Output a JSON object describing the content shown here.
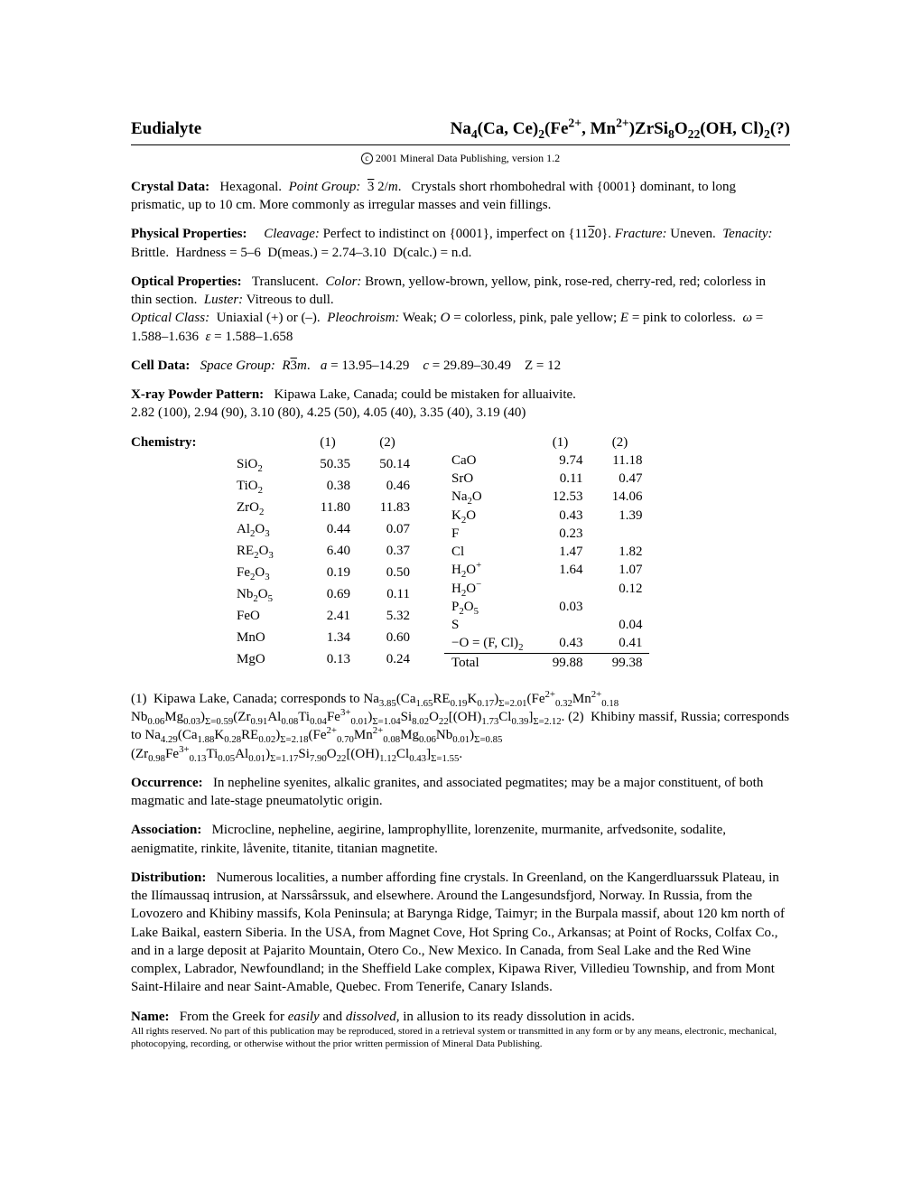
{
  "title": {
    "mineral": "Eudialyte",
    "formula_html": "Na<sub>4</sub>(Ca, Ce)<sub>2</sub>(Fe<sup>2+</sup>, Mn<sup>2+</sup>)ZrSi<sub>8</sub>O<sub>22</sub>(OH, Cl)<sub>2</sub>(?)"
  },
  "copyright": "2001 Mineral Data Publishing, version 1.2",
  "crystal_data": {
    "label": "Crystal Data:",
    "body_html": "Hexagonal. &nbsp;<span class='ital'>Point Group:</span> &nbsp;<span class='overline'>3</span> 2/<span class='ital'>m</span>. &nbsp;&nbsp;Crystals short rhombohedral with {0001} dominant, to long prismatic, up to 10 cm. More commonly as irregular masses and vein fillings."
  },
  "physical": {
    "label": "Physical Properties:",
    "body_html": "<span class='ital'>Cleavage:</span> Perfect to indistinct on {0001}, imperfect on {11<span class='overline'>2</span>0}. <span class='ital'>Fracture:</span> Uneven. &nbsp;<span class='ital'>Tenacity:</span> Brittle. &nbsp;Hardness = 5–6 &nbsp;D(meas.) = 2.74–3.10 &nbsp;D(calc.) = n.d."
  },
  "optical": {
    "label": "Optical Properties:",
    "body_html": "Translucent. &nbsp;<span class='ital'>Color:</span> Brown, yellow-brown, yellow, pink, rose-red, cherry-red, red; colorless in thin section. &nbsp;<span class='ital'>Luster:</span> Vitreous to dull.<br><span class='ital'>Optical Class:</span> &nbsp;Uniaxial (+) or (–). &nbsp;<span class='ital'>Pleochroism:</span> Weak; <span class='ital'>O</span> = colorless, pink, pale yellow; <span class='ital'>E</span> = pink to colorless. &nbsp;<span class='ital'>ω</span> = 1.588–1.636 &nbsp;<span class='ital'>ε</span> = 1.588–1.658"
  },
  "cell": {
    "label": "Cell Data:",
    "body_html": "<span class='ital'>Space Group:</span> &nbsp;<span class='ital'>R</span><span class='overline'>3</span><span class='ital'>m</span>. &nbsp;&nbsp;<span class='ital'>a</span> = 13.95–14.29 &nbsp;&nbsp;&nbsp;<span class='ital'>c</span> = 29.89–30.49 &nbsp;&nbsp;&nbsp;Z = 12"
  },
  "xray": {
    "label": "X-ray Powder Pattern:",
    "body_html": "Kipawa Lake, Canada; could be mistaken for alluaivite.<br>2.82 (100), 2.94 (90), 3.10 (80), 4.25 (50), 4.05 (40), 3.35 (40), 3.19 (40)"
  },
  "chemistry": {
    "label": "Chemistry:",
    "headers": [
      "(1)",
      "(2)"
    ],
    "left": [
      {
        "l": "SiO<sub>2</sub>",
        "a": "50.35",
        "b": "50.14"
      },
      {
        "l": "TiO<sub>2</sub>",
        "a": "0.38",
        "b": "0.46"
      },
      {
        "l": "ZrO<sub>2</sub>",
        "a": "11.80",
        "b": "11.83"
      },
      {
        "l": "Al<sub>2</sub>O<sub>3</sub>",
        "a": "0.44",
        "b": "0.07"
      },
      {
        "l": "RE<sub>2</sub>O<sub>3</sub>",
        "a": "6.40",
        "b": "0.37"
      },
      {
        "l": "Fe<sub>2</sub>O<sub>3</sub>",
        "a": "0.19",
        "b": "0.50"
      },
      {
        "l": "Nb<sub>2</sub>O<sub>5</sub>",
        "a": "0.69",
        "b": "0.11"
      },
      {
        "l": "FeO",
        "a": "2.41",
        "b": "5.32"
      },
      {
        "l": "MnO",
        "a": "1.34",
        "b": "0.60"
      },
      {
        "l": "MgO",
        "a": "0.13",
        "b": "0.24"
      }
    ],
    "right": [
      {
        "l": "CaO",
        "a": "9.74",
        "b": "11.18"
      },
      {
        "l": "SrO",
        "a": "0.11",
        "b": "0.47"
      },
      {
        "l": "Na<sub>2</sub>O",
        "a": "12.53",
        "b": "14.06"
      },
      {
        "l": "K<sub>2</sub>O",
        "a": "0.43",
        "b": "1.39"
      },
      {
        "l": "F",
        "a": "0.23",
        "b": ""
      },
      {
        "l": "Cl",
        "a": "1.47",
        "b": "1.82"
      },
      {
        "l": "H<sub>2</sub>O<sup>+</sup>",
        "a": "1.64",
        "b": "1.07"
      },
      {
        "l": "H<sub>2</sub>O<sup>−</sup>",
        "a": "",
        "b": "0.12"
      },
      {
        "l": "P<sub>2</sub>O<sub>5</sub>",
        "a": "0.03",
        "b": ""
      },
      {
        "l": "S",
        "a": "",
        "b": "0.04"
      },
      {
        "l": "−O = (F, Cl)<sub>2</sub>",
        "a": "0.43",
        "b": "0.41"
      }
    ],
    "total": {
      "l": "Total",
      "a": "99.88",
      "b": "99.38"
    }
  },
  "analysis_html": "(1) &nbsp;Kipawa Lake, Canada; corresponds to Na<sub>3.85</sub>(Ca<sub>1.65</sub>RE<sub>0.19</sub>K<sub>0.17</sub>)<sub>Σ=2.01</sub>(Fe<sup>2+</sup><sub>0.32</sub>Mn<sup>2+</sup><sub>0.18</sub> Nb<sub>0.06</sub>Mg<sub>0.03</sub>)<sub>Σ=0.59</sub>(Zr<sub>0.91</sub>Al<sub>0.08</sub>Ti<sub>0.04</sub>Fe<sup>3+</sup><sub>0.01</sub>)<sub>Σ=1.04</sub>Si<sub>8.02</sub>O<sub>22</sub>[(OH)<sub>1.73</sub>Cl<sub>0.39</sub>]<sub>Σ=2.12</sub>. (2) &nbsp;Khibiny massif, Russia; corresponds to Na<sub>4.29</sub>(Ca<sub>1.88</sub>K<sub>0.28</sub>RE<sub>0.02</sub>)<sub>Σ=2.18</sub>(Fe<sup>2+</sup><sub>0.70</sub>Mn<sup>2+</sup><sub>0.08</sub>Mg<sub>0.06</sub>Nb<sub>0.01</sub>)<sub>Σ=0.85</sub> (Zr<sub>0.98</sub>Fe<sup>3+</sup><sub>0.13</sub>Ti<sub>0.05</sub>Al<sub>0.01</sub>)<sub>Σ=1.17</sub>Si<sub>7.90</sub>O<sub>22</sub>[(OH)<sub>1.12</sub>Cl<sub>0.43</sub>]<sub>Σ=1.55</sub>.",
  "occurrence": {
    "label": "Occurrence:",
    "body": "In nepheline syenites, alkalic granites, and associated pegmatites; may be a major constituent, of both magmatic and late-stage pneumatolytic origin."
  },
  "association": {
    "label": "Association:",
    "body": "Microcline, nepheline, aegirine, lamprophyllite, lorenzenite, murmanite, arfvedsonite, sodalite, aenigmatite, rinkite, låvenite, titanite, titanian magnetite."
  },
  "distribution": {
    "label": "Distribution:",
    "body": "Numerous localities, a number affording fine crystals. In Greenland, on the Kangerdluarssuk Plateau, in the Ilímaussaq intrusion, at Narssârssuk, and elsewhere. Around the Langesundsfjord, Norway. In Russia, from the Lovozero and Khibiny massifs, Kola Peninsula; at Barynga Ridge, Taimyr; in the Burpala massif, about 120 km north of Lake Baikal, eastern Siberia. In the USA, from Magnet Cove, Hot Spring Co., Arkansas; at Point of Rocks, Colfax Co., and in a large deposit at Pajarito Mountain, Otero Co., New Mexico. In Canada, from Seal Lake and the Red Wine complex, Labrador, Newfoundland; in the Sheffield Lake complex, Kipawa River, Villedieu Township, and from Mont Saint-Hilaire and near Saint-Amable, Quebec. From Tenerife, Canary Islands."
  },
  "name": {
    "label": "Name:",
    "body_html": "From the Greek for <span class='ital'>easily</span> and <span class='ital'>dissolved</span>, in allusion to its ready dissolution in acids."
  },
  "rights": "All rights reserved. No part of this publication may be reproduced, stored in a retrieval system or transmitted in any form or by any means, electronic, mechanical, photocopying, recording, or otherwise without the prior written permission of Mineral Data Publishing."
}
